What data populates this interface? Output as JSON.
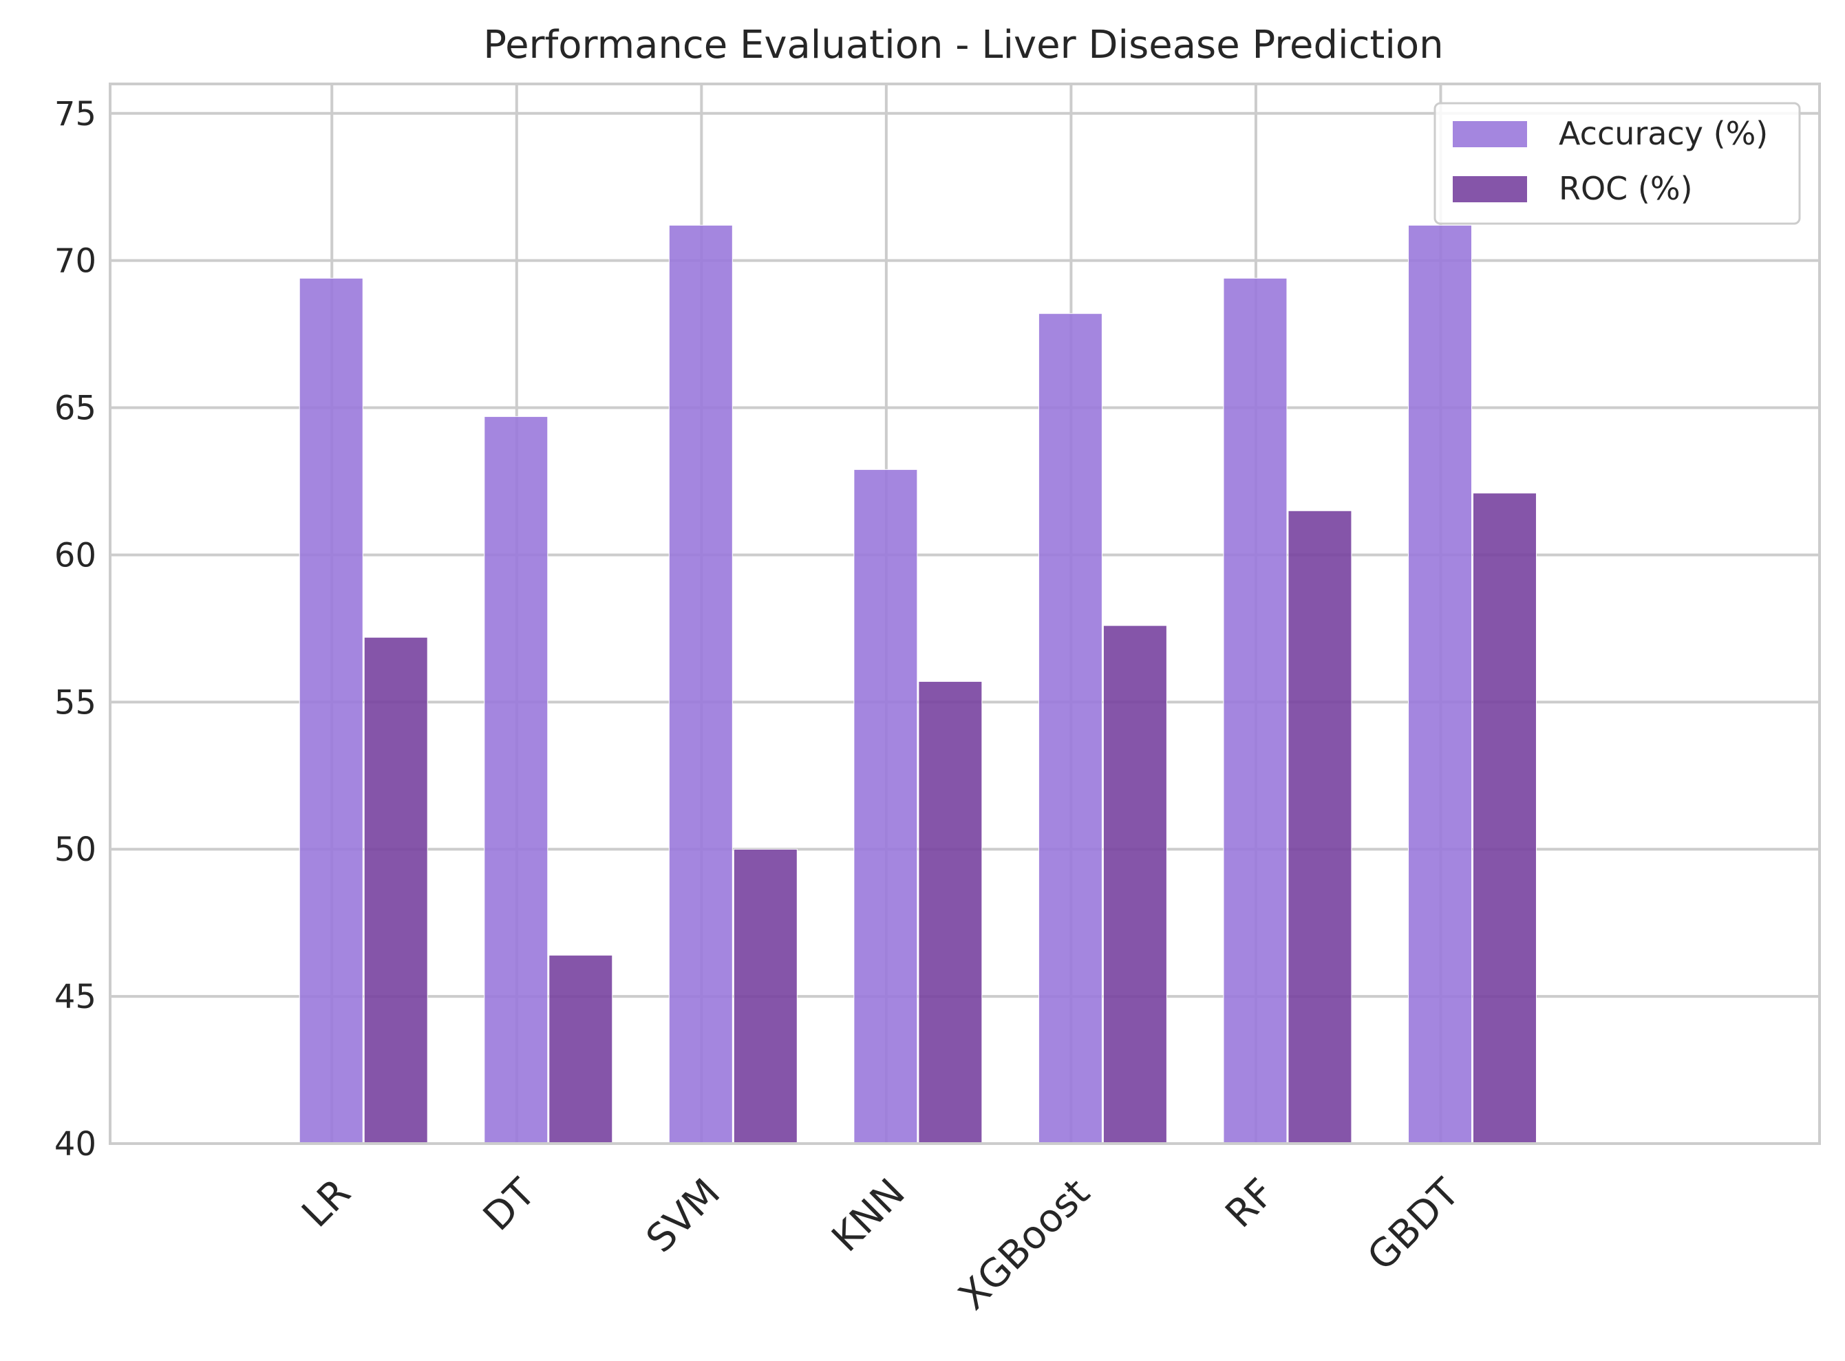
{
  "chart_data": {
    "type": "bar",
    "title": "Performance Evaluation - Liver Disease Prediction",
    "xlabel": "",
    "ylabel": "",
    "categories": [
      "LR",
      "DT",
      "SVM",
      "KNN",
      "XGBoost",
      "RF",
      "GBDT"
    ],
    "series": [
      {
        "name": "Accuracy (%)",
        "values": [
          69.4,
          64.7,
          71.2,
          62.9,
          68.2,
          69.4,
          71.2
        ]
      },
      {
        "name": "ROC (%)",
        "values": [
          57.2,
          46.4,
          50.0,
          55.7,
          57.6,
          61.5,
          62.1
        ]
      }
    ],
    "ylim": [
      40,
      76
    ],
    "yticks": [
      "40",
      "45",
      "50",
      "55",
      "60",
      "65",
      "70",
      "75"
    ],
    "grid": true,
    "legend_position": "top-right",
    "colors": {
      "Accuracy (%)": "#9a79dc",
      "ROC (%)": "#7843a0",
      "grid": "#cccccc",
      "axes": "#cccccc"
    }
  }
}
